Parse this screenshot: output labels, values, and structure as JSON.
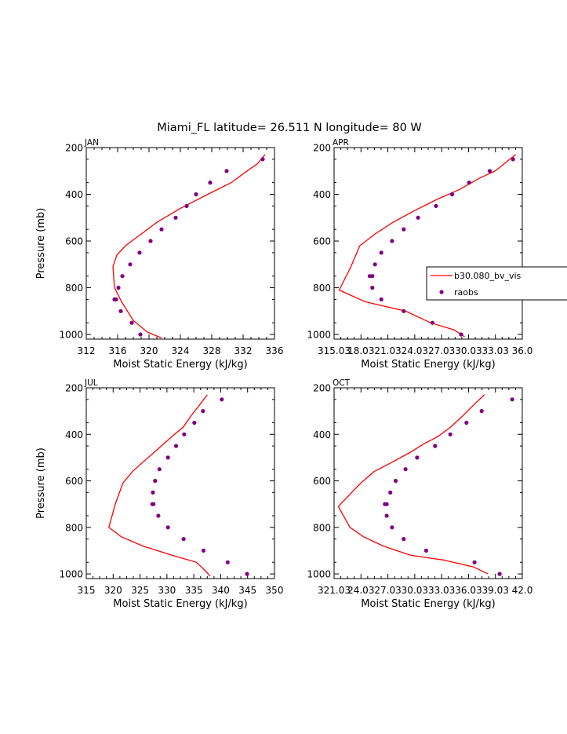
{
  "figure_title": "Miami_FL  latitude= 26.511 N longitude= 80 W",
  "colors": {
    "model_line": "#ff0000",
    "raobs_marker": "#800080",
    "axis": "#000000"
  },
  "legend": {
    "line_label": "b30.080_bv_vis",
    "marker_label": "raobs",
    "panel": "APR",
    "placement": "right"
  },
  "chart_data": [
    {
      "type": "line",
      "panel": "JAN",
      "title": "JAN",
      "xlabel": "Moist Static Energy  (kJ/kg)",
      "ylabel": "Pressure (mb)",
      "xlim": [
        312,
        336
      ],
      "ylim": [
        1020,
        200
      ],
      "xticks": [
        312,
        316,
        320,
        324,
        328,
        332,
        336
      ],
      "xtick_labels": [
        "312",
        "316",
        "320",
        "324",
        "328",
        "332",
        "336"
      ],
      "yticks": [
        200,
        400,
        600,
        800,
        1000
      ],
      "ytick_labels": [
        "200",
        "400",
        "600",
        "800",
        "1000"
      ],
      "series": [
        {
          "name": "b30.080_bv_vis",
          "style": "line",
          "x": [
            334.8,
            333.8,
            332.5,
            330.5,
            327.5,
            324.0,
            321.0,
            318.6,
            317.0,
            315.9,
            315.4,
            315.6,
            316.5,
            318.0,
            319.8,
            321.6
          ],
          "y": [
            230,
            270,
            300,
            350,
            400,
            460,
            520,
            580,
            620,
            660,
            710,
            800,
            860,
            940,
            990,
            1015
          ]
        },
        {
          "name": "raobs",
          "style": "marker",
          "x": [
            334.5,
            329.9,
            327.8,
            326.0,
            324.8,
            323.4,
            321.6,
            320.2,
            318.8,
            317.6,
            316.6,
            316.1,
            315.6,
            315.8,
            316.4,
            317.8,
            318.9
          ],
          "y": [
            250,
            300,
            350,
            400,
            450,
            500,
            550,
            600,
            650,
            700,
            750,
            800,
            850,
            850,
            900,
            950,
            1000
          ]
        }
      ]
    },
    {
      "type": "line",
      "panel": "APR",
      "title": "APR",
      "xlabel": "Moist Static Energy  (kJ/kg)",
      "ylabel": "",
      "xlim": [
        315.03,
        336.03
      ],
      "ylim": [
        1020,
        200
      ],
      "xticks": [
        315.03,
        318.03,
        321.03,
        324.03,
        327.03,
        330.03,
        333.03,
        336.03
      ],
      "xtick_labels": [
        "315.03",
        "18.03",
        "21.03",
        "24.03",
        "27.03",
        "30.03",
        "33.03",
        "36.0"
      ],
      "yticks": [
        200,
        400,
        600,
        800,
        1000
      ],
      "ytick_labels": [
        "200",
        "400",
        "600",
        "800",
        "1000"
      ],
      "series": [
        {
          "name": "b30.080_bv_vis",
          "style": "line",
          "x": [
            335.3,
            334.3,
            333.0,
            331.3,
            329.0,
            326.6,
            324.0,
            321.6,
            319.6,
            317.9,
            316.9,
            315.6,
            318.5,
            323.0,
            325.8,
            328.4,
            329.6
          ],
          "y": [
            230,
            260,
            300,
            330,
            380,
            420,
            470,
            520,
            570,
            620,
            710,
            810,
            860,
            900,
            950,
            980,
            1010
          ]
        },
        {
          "name": "raobs",
          "style": "marker",
          "x": [
            335.0,
            332.4,
            330.1,
            328.2,
            326.4,
            324.4,
            322.8,
            321.5,
            320.3,
            319.6,
            319.3,
            319.0,
            319.3,
            320.3,
            322.8,
            326.0,
            329.2
          ],
          "y": [
            250,
            300,
            350,
            400,
            450,
            500,
            550,
            600,
            650,
            700,
            750,
            750,
            800,
            850,
            900,
            950,
            1000
          ]
        }
      ]
    },
    {
      "type": "line",
      "panel": "JUL",
      "title": "JUL",
      "xlabel": "Moist Static Energy  (kJ/kg)",
      "ylabel": "Pressure (mb)",
      "xlim": [
        315,
        350
      ],
      "ylim": [
        1020,
        200
      ],
      "xticks": [
        315,
        320,
        325,
        330,
        335,
        340,
        345,
        350
      ],
      "xtick_labels": [
        "315",
        "320",
        "325",
        "330",
        "335",
        "340",
        "345",
        "350"
      ],
      "yticks": [
        200,
        400,
        600,
        800,
        1000
      ],
      "ytick_labels": [
        "200",
        "400",
        "600",
        "800",
        "1000"
      ],
      "series": [
        {
          "name": "b30.080_bv_vis",
          "style": "line",
          "x": [
            337.5,
            336.2,
            334.5,
            333.0,
            331.4,
            329.9,
            328.0,
            325.5,
            323.6,
            321.8,
            320.4,
            319.2,
            321.5,
            325.5,
            331.0,
            335.5,
            337.3,
            338.0
          ],
          "y": [
            230,
            270,
            320,
            370,
            400,
            430,
            470,
            520,
            560,
            610,
            700,
            800,
            840,
            880,
            920,
            950,
            990,
            1010
          ]
        },
        {
          "name": "raobs",
          "style": "marker",
          "x": [
            340.2,
            336.7,
            335.1,
            333.2,
            331.7,
            330.2,
            328.6,
            327.8,
            327.4,
            327.3,
            327.5,
            328.4,
            330.2,
            333.1,
            336.8,
            341.3,
            344.9
          ],
          "y": [
            250,
            300,
            350,
            400,
            450,
            500,
            550,
            600,
            650,
            700,
            700,
            750,
            800,
            850,
            900,
            950,
            1000
          ]
        }
      ]
    },
    {
      "type": "line",
      "panel": "OCT",
      "title": "OCT",
      "xlabel": "Moist Static Energy  (kJ/kg)",
      "ylabel": "",
      "xlim": [
        321.03,
        342.03
      ],
      "ylim": [
        1020,
        200
      ],
      "xticks": [
        321.03,
        324.03,
        327.03,
        330.03,
        333.03,
        336.03,
        339.03,
        342.03
      ],
      "xtick_labels": [
        "321.03",
        "24.03",
        "27.03",
        "30.03",
        "33.03",
        "36.03",
        "39.03",
        "42.0"
      ],
      "yticks": [
        200,
        400,
        600,
        800,
        1000
      ],
      "ytick_labels": [
        "200",
        "400",
        "600",
        "800",
        "1000"
      ],
      "series": [
        {
          "name": "b30.080_bv_vis",
          "style": "line",
          "x": [
            337.8,
            336.7,
            335.4,
            334.0,
            332.6,
            331.1,
            329.4,
            327.5,
            325.5,
            324.0,
            321.5,
            322.8,
            324.3,
            326.5,
            329.6,
            333.2,
            336.6,
            338.2
          ],
          "y": [
            230,
            270,
            320,
            370,
            410,
            440,
            480,
            520,
            560,
            610,
            710,
            800,
            840,
            880,
            920,
            940,
            970,
            1000
          ]
        },
        {
          "name": "raobs",
          "style": "marker",
          "x": [
            340.9,
            337.5,
            335.8,
            334.0,
            332.3,
            330.3,
            329.0,
            327.9,
            327.3,
            326.9,
            326.7,
            326.9,
            327.5,
            328.8,
            331.3,
            336.7,
            339.5
          ],
          "y": [
            250,
            300,
            350,
            400,
            450,
            500,
            550,
            600,
            650,
            700,
            700,
            750,
            800,
            850,
            900,
            950,
            1000
          ]
        }
      ]
    }
  ]
}
